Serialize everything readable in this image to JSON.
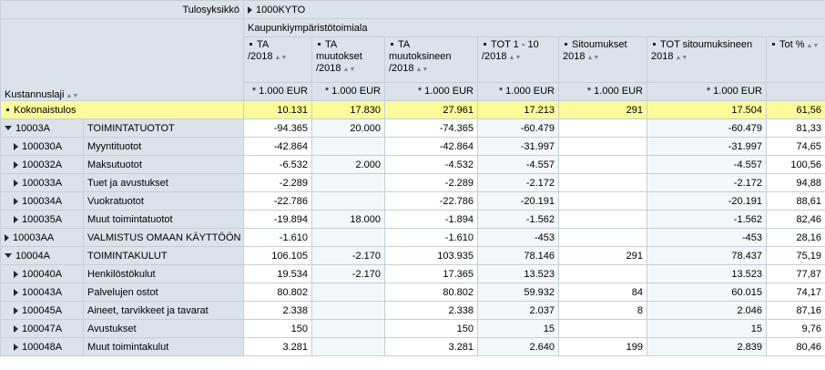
{
  "header": {
    "tulosyksikko_label": "Tulosyksikkö",
    "tulosyksikko_value": "1000KYTO",
    "org_name": "Kaupunkiympäristötoimiala",
    "kustannuslaji_label": "Kustannuslaji",
    "sort_icon": "sort-icon"
  },
  "columns": [
    {
      "label": "TA /2018",
      "unit": "* 1.000 EUR"
    },
    {
      "label": "TA muutokset /2018",
      "unit": "* 1.000 EUR"
    },
    {
      "label": "TA muutoksineen /2018",
      "unit": "* 1.000 EUR"
    },
    {
      "label": "TOT 1 - 10 /2018",
      "unit": "* 1.000 EUR"
    },
    {
      "label": "Sitoumukset 2018",
      "unit": "* 1.000 EUR"
    },
    {
      "label": "TOT sitoumuksineen 2018",
      "unit": "* 1.000 EUR"
    },
    {
      "label": "Tot %",
      "unit": ""
    }
  ],
  "rows": [
    {
      "code": "Kokonaistulos",
      "name": "",
      "type": "total",
      "values": [
        "10.131",
        "17.830",
        "27.961",
        "17.213",
        "291",
        "17.504",
        "61,56"
      ]
    },
    {
      "code": "10003A",
      "name": "TOIMINTATUOTOT",
      "type": "expanded",
      "values": [
        "-94.365",
        "20.000",
        "-74.365",
        "-60.479",
        "",
        "-60.479",
        "81,33"
      ]
    },
    {
      "code": "100030A",
      "name": "Myyntituotot",
      "type": "child",
      "values": [
        "-42.864",
        "",
        "-42.864",
        "-31.997",
        "",
        "-31.997",
        "74,65"
      ]
    },
    {
      "code": "100032A",
      "name": "Maksutuotot",
      "type": "child",
      "values": [
        "-6.532",
        "2.000",
        "-4.532",
        "-4.557",
        "",
        "-4.557",
        "100,56"
      ]
    },
    {
      "code": "100033A",
      "name": "Tuet ja avustukset",
      "type": "child",
      "values": [
        "-2.289",
        "",
        "-2.289",
        "-2.172",
        "",
        "-2.172",
        "94,88"
      ]
    },
    {
      "code": "100034A",
      "name": "Vuokratuotot",
      "type": "child",
      "values": [
        "-22.786",
        "",
        "-22.786",
        "-20.191",
        "",
        "-20.191",
        "88,61"
      ]
    },
    {
      "code": "100035A",
      "name": "Muut toimintatuotot",
      "type": "child",
      "values": [
        "-19.894",
        "18.000",
        "-1.894",
        "-1.562",
        "",
        "-1.562",
        "82,46"
      ]
    },
    {
      "code": "10003AA",
      "name": "VALMISTUS OMAAN KÄYTTÖÖN",
      "type": "collapsed",
      "values": [
        "-1.610",
        "",
        "-1.610",
        "-453",
        "",
        "-453",
        "28,16"
      ]
    },
    {
      "code": "10004A",
      "name": "TOIMINTAKULUT",
      "type": "expanded",
      "values": [
        "106.105",
        "-2.170",
        "103.935",
        "78.146",
        "291",
        "78.437",
        "75,19"
      ]
    },
    {
      "code": "100040A",
      "name": "Henkilöstökulut",
      "type": "child",
      "values": [
        "19.534",
        "-2.170",
        "17.365",
        "13.523",
        "",
        "13.523",
        "77,87"
      ]
    },
    {
      "code": "100043A",
      "name": "Palvelujen ostot",
      "type": "child",
      "values": [
        "80.802",
        "",
        "80.802",
        "59.932",
        "84",
        "60.015",
        "74,17"
      ]
    },
    {
      "code": "100045A",
      "name": "Aineet, tarvikkeet ja tavarat",
      "type": "child",
      "values": [
        "2.338",
        "",
        "2.338",
        "2.037",
        "8",
        "2.046",
        "87,16"
      ]
    },
    {
      "code": "100047A",
      "name": "Avustukset",
      "type": "child",
      "values": [
        "150",
        "",
        "150",
        "15",
        "",
        "15",
        "9,76"
      ]
    },
    {
      "code": "100048A",
      "name": "Muut toimintakulut",
      "type": "child",
      "values": [
        "3.281",
        "",
        "3.281",
        "2.640",
        "199",
        "2.839",
        "80,46"
      ]
    }
  ]
}
